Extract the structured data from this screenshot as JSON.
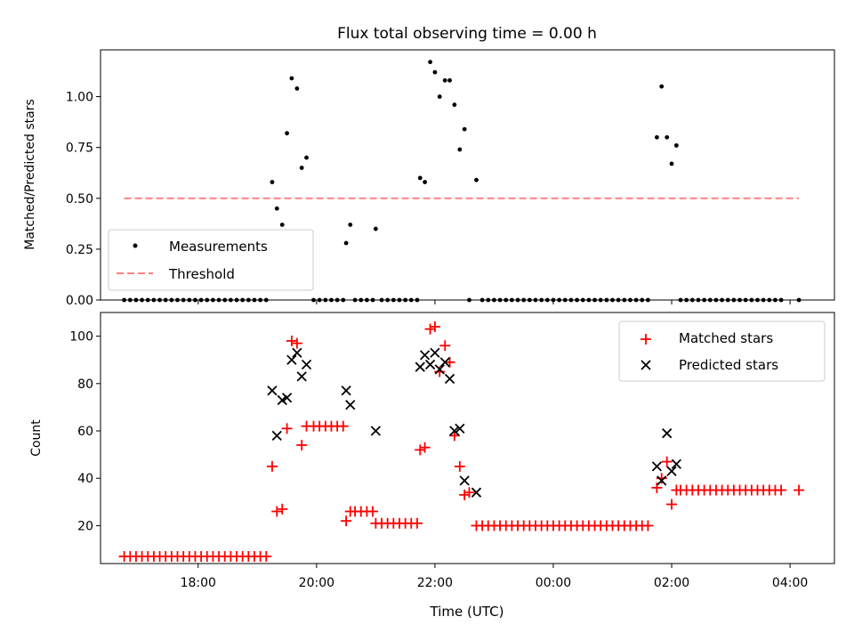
{
  "chart_data": [
    {
      "type": "scatter",
      "title": "Flux total observing time = 0.00 h",
      "xlabel": "",
      "ylabel": "Matched/Predicted stars",
      "xlim": [
        16.35,
        28.75
      ],
      "ylim": [
        0,
        1.23
      ],
      "x_ticks": [
        18,
        20,
        22,
        24,
        26,
        28
      ],
      "y_ticks": [
        0,
        0.25,
        0.5,
        0.75,
        1.0
      ],
      "y_tick_labels": [
        "0.00",
        "0.25",
        "0.50",
        "0.75",
        "1.00"
      ],
      "legend": {
        "position": "bottom-left",
        "entries": [
          "Measurements",
          "Threshold"
        ]
      },
      "series": [
        {
          "name": "Measurements",
          "color": "#000000",
          "marker": "dot",
          "points": [
            [
              16.75,
              0
            ],
            [
              16.85,
              0
            ],
            [
              16.95,
              0
            ],
            [
              17.05,
              0
            ],
            [
              17.15,
              0
            ],
            [
              17.25,
              0
            ],
            [
              17.35,
              0
            ],
            [
              17.45,
              0
            ],
            [
              17.55,
              0
            ],
            [
              17.65,
              0
            ],
            [
              17.75,
              0
            ],
            [
              17.85,
              0
            ],
            [
              17.95,
              0
            ],
            [
              18.05,
              0
            ],
            [
              18.15,
              0
            ],
            [
              18.25,
              0
            ],
            [
              18.35,
              0
            ],
            [
              18.45,
              0
            ],
            [
              18.55,
              0
            ],
            [
              18.65,
              0
            ],
            [
              18.75,
              0
            ],
            [
              18.85,
              0
            ],
            [
              18.95,
              0
            ],
            [
              19.05,
              0
            ],
            [
              19.15,
              0
            ],
            [
              19.25,
              0.58
            ],
            [
              19.33,
              0.45
            ],
            [
              19.42,
              0.37
            ],
            [
              19.5,
              0.82
            ],
            [
              19.58,
              1.09
            ],
            [
              19.67,
              1.04
            ],
            [
              19.75,
              0.65
            ],
            [
              19.83,
              0.7
            ],
            [
              19.95,
              0
            ],
            [
              20.05,
              0
            ],
            [
              20.15,
              0
            ],
            [
              20.25,
              0
            ],
            [
              20.35,
              0
            ],
            [
              20.45,
              0
            ],
            [
              20.5,
              0.28
            ],
            [
              20.57,
              0.37
            ],
            [
              20.65,
              0
            ],
            [
              20.75,
              0
            ],
            [
              20.85,
              0
            ],
            [
              20.95,
              0
            ],
            [
              21.0,
              0.35
            ],
            [
              21.1,
              0
            ],
            [
              21.2,
              0
            ],
            [
              21.3,
              0
            ],
            [
              21.4,
              0
            ],
            [
              21.5,
              0
            ],
            [
              21.6,
              0
            ],
            [
              21.7,
              0
            ],
            [
              21.75,
              0.6
            ],
            [
              21.83,
              0.58
            ],
            [
              21.92,
              1.17
            ],
            [
              22.0,
              1.12
            ],
            [
              22.08,
              1.0
            ],
            [
              22.17,
              1.08
            ],
            [
              22.25,
              1.08
            ],
            [
              22.33,
              0.96
            ],
            [
              22.42,
              0.74
            ],
            [
              22.5,
              0.84
            ],
            [
              22.58,
              0
            ],
            [
              22.7,
              0.59
            ],
            [
              22.8,
              0
            ],
            [
              22.9,
              0
            ],
            [
              23.0,
              0
            ],
            [
              23.1,
              0
            ],
            [
              23.2,
              0
            ],
            [
              23.3,
              0
            ],
            [
              23.4,
              0
            ],
            [
              23.5,
              0
            ],
            [
              23.6,
              0
            ],
            [
              23.7,
              0
            ],
            [
              23.8,
              0
            ],
            [
              23.9,
              0
            ],
            [
              24.0,
              0
            ],
            [
              24.1,
              0
            ],
            [
              24.2,
              0
            ],
            [
              24.3,
              0
            ],
            [
              24.4,
              0
            ],
            [
              24.5,
              0
            ],
            [
              24.6,
              0
            ],
            [
              24.7,
              0
            ],
            [
              24.8,
              0
            ],
            [
              24.9,
              0
            ],
            [
              25.0,
              0
            ],
            [
              25.1,
              0
            ],
            [
              25.2,
              0
            ],
            [
              25.3,
              0
            ],
            [
              25.4,
              0
            ],
            [
              25.5,
              0
            ],
            [
              25.6,
              0
            ],
            [
              25.75,
              0.8
            ],
            [
              25.83,
              1.05
            ],
            [
              25.92,
              0.8
            ],
            [
              26.0,
              0.67
            ],
            [
              26.08,
              0.76
            ],
            [
              26.15,
              0
            ],
            [
              26.25,
              0
            ],
            [
              26.35,
              0
            ],
            [
              26.45,
              0
            ],
            [
              26.55,
              0
            ],
            [
              26.65,
              0
            ],
            [
              26.75,
              0
            ],
            [
              26.85,
              0
            ],
            [
              26.95,
              0
            ],
            [
              27.05,
              0
            ],
            [
              27.15,
              0
            ],
            [
              27.25,
              0
            ],
            [
              27.35,
              0
            ],
            [
              27.45,
              0
            ],
            [
              27.55,
              0
            ],
            [
              27.65,
              0
            ],
            [
              27.75,
              0
            ],
            [
              27.85,
              0
            ],
            [
              28.15,
              0
            ]
          ]
        },
        {
          "name": "Threshold",
          "color": "#ff8080",
          "style": "dashed",
          "points": [
            [
              16.75,
              0.5
            ],
            [
              28.15,
              0.5
            ]
          ]
        }
      ]
    },
    {
      "type": "scatter",
      "title": "",
      "xlabel": "Time (UTC)",
      "ylabel": "Count",
      "xlim": [
        16.35,
        28.75
      ],
      "ylim": [
        4,
        110
      ],
      "x_ticks": [
        18,
        20,
        22,
        24,
        26,
        28
      ],
      "x_tick_labels": [
        "18:00",
        "20:00",
        "22:00",
        "00:00",
        "02:00",
        "04:00"
      ],
      "y_ticks": [
        20,
        40,
        60,
        80,
        100
      ],
      "y_tick_labels": [
        "20",
        "40",
        "60",
        "80",
        "100"
      ],
      "legend": {
        "position": "top-right",
        "entries": [
          "Matched stars",
          "Predicted stars"
        ]
      },
      "series": [
        {
          "name": "Matched stars",
          "color": "#ff0000",
          "marker": "plus",
          "points": [
            [
              16.75,
              7
            ],
            [
              16.85,
              7
            ],
            [
              16.95,
              7
            ],
            [
              17.05,
              7
            ],
            [
              17.15,
              7
            ],
            [
              17.25,
              7
            ],
            [
              17.35,
              7
            ],
            [
              17.45,
              7
            ],
            [
              17.55,
              7
            ],
            [
              17.65,
              7
            ],
            [
              17.75,
              7
            ],
            [
              17.85,
              7
            ],
            [
              17.95,
              7
            ],
            [
              18.05,
              7
            ],
            [
              18.15,
              7
            ],
            [
              18.25,
              7
            ],
            [
              18.35,
              7
            ],
            [
              18.45,
              7
            ],
            [
              18.55,
              7
            ],
            [
              18.65,
              7
            ],
            [
              18.75,
              7
            ],
            [
              18.85,
              7
            ],
            [
              18.95,
              7
            ],
            [
              19.05,
              7
            ],
            [
              19.15,
              7
            ],
            [
              19.25,
              45
            ],
            [
              19.33,
              26
            ],
            [
              19.42,
              27
            ],
            [
              19.5,
              61
            ],
            [
              19.58,
              98
            ],
            [
              19.67,
              97
            ],
            [
              19.75,
              54
            ],
            [
              19.83,
              62
            ],
            [
              19.95,
              62
            ],
            [
              20.05,
              62
            ],
            [
              20.15,
              62
            ],
            [
              20.25,
              62
            ],
            [
              20.35,
              62
            ],
            [
              20.45,
              62
            ],
            [
              20.5,
              22
            ],
            [
              20.57,
              26
            ],
            [
              20.65,
              26
            ],
            [
              20.75,
              26
            ],
            [
              20.85,
              26
            ],
            [
              20.95,
              26
            ],
            [
              21.0,
              21
            ],
            [
              21.1,
              21
            ],
            [
              21.2,
              21
            ],
            [
              21.3,
              21
            ],
            [
              21.4,
              21
            ],
            [
              21.5,
              21
            ],
            [
              21.6,
              21
            ],
            [
              21.7,
              21
            ],
            [
              21.75,
              52
            ],
            [
              21.83,
              53
            ],
            [
              21.92,
              103
            ],
            [
              22.0,
              104
            ],
            [
              22.08,
              85
            ],
            [
              22.17,
              96
            ],
            [
              22.25,
              89
            ],
            [
              22.33,
              58
            ],
            [
              22.42,
              45
            ],
            [
              22.5,
              33
            ],
            [
              22.58,
              34
            ],
            [
              22.7,
              20
            ],
            [
              22.8,
              20
            ],
            [
              22.9,
              20
            ],
            [
              23.0,
              20
            ],
            [
              23.1,
              20
            ],
            [
              23.2,
              20
            ],
            [
              23.3,
              20
            ],
            [
              23.4,
              20
            ],
            [
              23.5,
              20
            ],
            [
              23.6,
              20
            ],
            [
              23.7,
              20
            ],
            [
              23.8,
              20
            ],
            [
              23.9,
              20
            ],
            [
              24.0,
              20
            ],
            [
              24.1,
              20
            ],
            [
              24.2,
              20
            ],
            [
              24.3,
              20
            ],
            [
              24.4,
              20
            ],
            [
              24.5,
              20
            ],
            [
              24.6,
              20
            ],
            [
              24.7,
              20
            ],
            [
              24.8,
              20
            ],
            [
              24.9,
              20
            ],
            [
              25.0,
              20
            ],
            [
              25.1,
              20
            ],
            [
              25.2,
              20
            ],
            [
              25.3,
              20
            ],
            [
              25.4,
              20
            ],
            [
              25.5,
              20
            ],
            [
              25.6,
              20
            ],
            [
              25.75,
              36
            ],
            [
              25.83,
              40
            ],
            [
              25.92,
              47
            ],
            [
              26.0,
              29
            ],
            [
              26.08,
              35
            ],
            [
              26.15,
              35
            ],
            [
              26.25,
              35
            ],
            [
              26.35,
              35
            ],
            [
              26.45,
              35
            ],
            [
              26.55,
              35
            ],
            [
              26.65,
              35
            ],
            [
              26.75,
              35
            ],
            [
              26.85,
              35
            ],
            [
              26.95,
              35
            ],
            [
              27.05,
              35
            ],
            [
              27.15,
              35
            ],
            [
              27.25,
              35
            ],
            [
              27.35,
              35
            ],
            [
              27.45,
              35
            ],
            [
              27.55,
              35
            ],
            [
              27.65,
              35
            ],
            [
              27.75,
              35
            ],
            [
              27.85,
              35
            ],
            [
              28.15,
              35
            ]
          ]
        },
        {
          "name": "Predicted stars",
          "color": "#000000",
          "marker": "x",
          "points": [
            [
              19.25,
              77
            ],
            [
              19.33,
              58
            ],
            [
              19.42,
              73
            ],
            [
              19.5,
              74
            ],
            [
              19.58,
              90
            ],
            [
              19.67,
              93
            ],
            [
              19.75,
              83
            ],
            [
              19.83,
              88
            ],
            [
              20.5,
              77
            ],
            [
              20.57,
              71
            ],
            [
              21.0,
              60
            ],
            [
              21.75,
              87
            ],
            [
              21.83,
              92
            ],
            [
              21.92,
              88
            ],
            [
              22.0,
              93
            ],
            [
              22.08,
              86
            ],
            [
              22.17,
              89
            ],
            [
              22.25,
              82
            ],
            [
              22.33,
              60
            ],
            [
              22.42,
              61
            ],
            [
              22.5,
              39
            ],
            [
              22.7,
              34
            ],
            [
              25.75,
              45
            ],
            [
              25.83,
              39
            ],
            [
              25.92,
              59
            ],
            [
              26.0,
              43
            ],
            [
              26.08,
              46
            ]
          ]
        }
      ]
    }
  ]
}
